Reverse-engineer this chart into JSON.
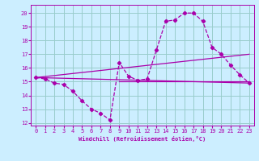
{
  "xlabel": "Windchill (Refroidissement éolien,°C)",
  "bg_color": "#cceeff",
  "grid_color": "#99cccc",
  "line_color": "#aa00aa",
  "xlim": [
    -0.5,
    23.5
  ],
  "ylim": [
    11.8,
    20.6
  ],
  "yticks": [
    12,
    13,
    14,
    15,
    16,
    17,
    18,
    19,
    20
  ],
  "xticks": [
    0,
    1,
    2,
    3,
    4,
    5,
    6,
    7,
    8,
    9,
    10,
    11,
    12,
    13,
    14,
    15,
    16,
    17,
    18,
    19,
    20,
    21,
    22,
    23
  ],
  "line1_x": [
    0,
    1,
    2,
    3,
    4,
    5,
    6,
    7,
    8,
    9,
    10,
    11,
    12,
    13,
    14,
    15,
    16,
    17,
    18,
    19,
    20,
    21,
    22,
    23
  ],
  "line1_y": [
    15.3,
    15.2,
    14.9,
    14.8,
    14.3,
    13.6,
    13.0,
    12.7,
    12.2,
    16.4,
    15.4,
    15.1,
    15.2,
    17.3,
    19.4,
    19.5,
    20.0,
    20.0,
    19.4,
    17.5,
    17.0,
    16.2,
    15.5,
    14.9
  ],
  "line2_x": [
    0,
    23
  ],
  "line2_y": [
    15.3,
    14.9
  ],
  "line3_x": [
    0,
    23
  ],
  "line3_y": [
    15.3,
    17.0
  ],
  "line4_x": [
    9,
    23
  ],
  "line4_y": [
    15.0,
    15.0
  ]
}
